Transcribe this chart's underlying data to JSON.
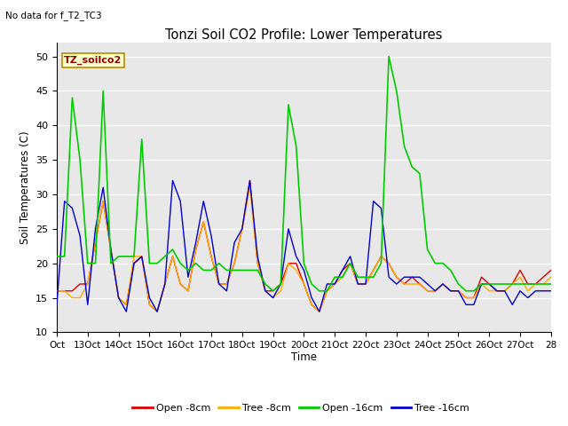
{
  "title": "Tonzi Soil CO2 Profile: Lower Temperatures",
  "subtitle": "No data for f_T2_TC3",
  "ylabel": "Soil Temperatures (C)",
  "xlabel": "Time",
  "ylim": [
    10,
    52
  ],
  "yticks": [
    10,
    15,
    20,
    25,
    30,
    35,
    40,
    45,
    50
  ],
  "legend_label": "TZ_soilco2",
  "legend_box_color": "#ffffcc",
  "legend_box_edge": "#bb8800",
  "background_color": "#e8e8e8",
  "series_colors": {
    "open8": "#dd0000",
    "tree8": "#ffaa00",
    "open16": "#00cc00",
    "tree16": "#0000cc"
  },
  "x_tick_labels": [
    "Oct",
    "13Oct",
    "14Oct",
    "15Oct",
    "16Oct",
    "17Oct",
    "18Oct",
    "19Oct",
    "20Oct",
    "21Oct",
    "22Oct",
    "23Oct",
    "24Oct",
    "25Oct",
    "26Oct",
    "27Oct",
    "28"
  ],
  "x_tick_positions": [
    0,
    1,
    2,
    3,
    4,
    5,
    6,
    7,
    8,
    9,
    10,
    11,
    12,
    13,
    14,
    15,
    16
  ],
  "open8_x": [
    0.0,
    0.25,
    0.5,
    0.75,
    1.0,
    1.25,
    1.5,
    1.75,
    2.0,
    2.25,
    2.5,
    2.75,
    3.0,
    3.25,
    3.5,
    3.75,
    4.0,
    4.25,
    4.5,
    4.75,
    5.0,
    5.25,
    5.5,
    5.75,
    6.0,
    6.25,
    6.5,
    6.75,
    7.0,
    7.25,
    7.5,
    7.75,
    8.0,
    8.25,
    8.5,
    8.75,
    9.0,
    9.25,
    9.5,
    9.75,
    10.0,
    10.25,
    10.5,
    10.75,
    11.0,
    11.25,
    11.5,
    11.75,
    12.0,
    12.25,
    12.5,
    12.75,
    13.0,
    13.25,
    13.5,
    13.75,
    14.0,
    14.25,
    14.5,
    14.75,
    15.0,
    15.25,
    15.5,
    15.75,
    16.0
  ],
  "open8_y": [
    16,
    16,
    16,
    17,
    17,
    23,
    29,
    22,
    15,
    14,
    20,
    21,
    14,
    13,
    17,
    21,
    17,
    16,
    22,
    26,
    21,
    17,
    17,
    20,
    25,
    32,
    20,
    16,
    16,
    17,
    20,
    20,
    17,
    14,
    13,
    16,
    17,
    19,
    20,
    17,
    17,
    19,
    21,
    20,
    18,
    17,
    18,
    17,
    16,
    16,
    17,
    16,
    16,
    15,
    15,
    18,
    17,
    16,
    16,
    17,
    19,
    17,
    17,
    18,
    19
  ],
  "tree8_x": [
    0.0,
    0.25,
    0.5,
    0.75,
    1.0,
    1.25,
    1.5,
    1.75,
    2.0,
    2.25,
    2.5,
    2.75,
    3.0,
    3.25,
    3.5,
    3.75,
    4.0,
    4.25,
    4.5,
    4.75,
    5.0,
    5.25,
    5.5,
    5.75,
    6.0,
    6.25,
    6.5,
    6.75,
    7.0,
    7.25,
    7.5,
    7.75,
    8.0,
    8.25,
    8.5,
    8.75,
    9.0,
    9.25,
    9.5,
    9.75,
    10.0,
    10.25,
    10.5,
    10.75,
    11.0,
    11.25,
    11.5,
    11.75,
    12.0,
    12.25,
    12.5,
    12.75,
    13.0,
    13.25,
    13.5,
    13.75,
    14.0,
    14.25,
    14.5,
    14.75,
    15.0,
    15.25,
    15.5,
    15.75,
    16.0
  ],
  "tree8_y": [
    16,
    16,
    15,
    15,
    17,
    23,
    29,
    22,
    15,
    14,
    21,
    21,
    14,
    13,
    17,
    21,
    17,
    16,
    22,
    26,
    21,
    17,
    17,
    20,
    25,
    31,
    20,
    16,
    15,
    16,
    20,
    19,
    17,
    14,
    13,
    16,
    17,
    18,
    20,
    17,
    17,
    19,
    21,
    20,
    18,
    17,
    17,
    17,
    16,
    16,
    17,
    16,
    16,
    15,
    15,
    17,
    16,
    16,
    16,
    17,
    18,
    16,
    17,
    17,
    18
  ],
  "open16_x": [
    0.0,
    0.25,
    0.5,
    0.75,
    1.0,
    1.25,
    1.5,
    1.75,
    2.0,
    2.25,
    2.5,
    2.75,
    3.0,
    3.25,
    3.5,
    3.75,
    4.0,
    4.25,
    4.5,
    4.75,
    5.0,
    5.25,
    5.5,
    5.75,
    6.0,
    6.25,
    6.5,
    6.75,
    7.0,
    7.25,
    7.5,
    7.75,
    8.0,
    8.25,
    8.5,
    8.75,
    9.0,
    9.25,
    9.5,
    9.75,
    10.0,
    10.25,
    10.5,
    10.75,
    11.0,
    11.25,
    11.5,
    11.75,
    12.0,
    12.25,
    12.5,
    12.75,
    13.0,
    13.25,
    13.5,
    13.75,
    14.0,
    14.25,
    14.5,
    14.75,
    15.0,
    15.25,
    15.5,
    15.75,
    16.0
  ],
  "open16_y": [
    21,
    21,
    44,
    35,
    20,
    20,
    45,
    20,
    21,
    21,
    21,
    38,
    20,
    20,
    21,
    22,
    20,
    19,
    20,
    19,
    19,
    20,
    19,
    19,
    19,
    19,
    19,
    17,
    16,
    17,
    43,
    37,
    20,
    17,
    16,
    16,
    18,
    18,
    20,
    18,
    18,
    18,
    20,
    50,
    45,
    37,
    34,
    33,
    22,
    20,
    20,
    19,
    17,
    16,
    16,
    17,
    17,
    17,
    17,
    17,
    17,
    17,
    17,
    17,
    17
  ],
  "tree16_x": [
    0.0,
    0.25,
    0.5,
    0.75,
    1.0,
    1.25,
    1.5,
    1.75,
    2.0,
    2.25,
    2.5,
    2.75,
    3.0,
    3.25,
    3.5,
    3.75,
    4.0,
    4.25,
    4.5,
    4.75,
    5.0,
    5.25,
    5.5,
    5.75,
    6.0,
    6.25,
    6.5,
    6.75,
    7.0,
    7.25,
    7.5,
    7.75,
    8.0,
    8.25,
    8.5,
    8.75,
    9.0,
    9.25,
    9.5,
    9.75,
    10.0,
    10.25,
    10.5,
    10.75,
    11.0,
    11.25,
    11.5,
    11.75,
    12.0,
    12.25,
    12.5,
    12.75,
    13.0,
    13.25,
    13.5,
    13.75,
    14.0,
    14.25,
    14.5,
    14.75,
    15.0,
    15.25,
    15.5,
    15.75,
    16.0
  ],
  "tree16_y": [
    14,
    29,
    28,
    24,
    14,
    25,
    31,
    22,
    15,
    13,
    20,
    21,
    15,
    13,
    17,
    32,
    29,
    18,
    23,
    29,
    24,
    17,
    16,
    23,
    25,
    32,
    21,
    16,
    15,
    17,
    25,
    21,
    19,
    15,
    13,
    17,
    17,
    19,
    21,
    17,
    17,
    29,
    28,
    18,
    17,
    18,
    18,
    18,
    17,
    16,
    17,
    16,
    16,
    14,
    14,
    17,
    17,
    16,
    16,
    14,
    16,
    15,
    16,
    16,
    16
  ]
}
